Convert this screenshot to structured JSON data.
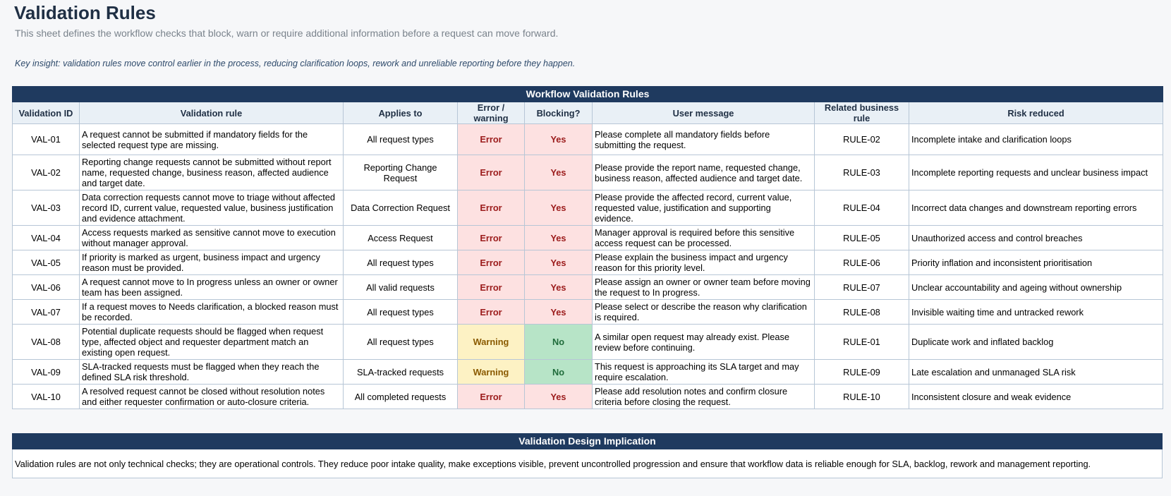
{
  "page": {
    "title": "Validation Rules",
    "subtitle": "This sheet defines the workflow checks that block, warn or require additional information before a request can move forward.",
    "insight": "Key insight: validation rules move control earlier in the process, reducing clarification loops, rework and unreliable reporting before they happen."
  },
  "rules_table": {
    "banner": "Workflow Validation Rules",
    "headers": {
      "id": "Validation ID",
      "rule": "Validation rule",
      "applies": "Applies to",
      "severity": "Error / warning",
      "blocking": "Blocking?",
      "message": "User message",
      "business_rule": "Related business rule",
      "risk": "Risk reduced"
    },
    "rows": [
      {
        "id": "VAL-01",
        "rule": "A request cannot be submitted if mandatory fields for the selected request type are missing.",
        "applies": "All request types",
        "severity": "Error",
        "blocking": "Yes",
        "message": "Please complete all mandatory fields before submitting the request.",
        "business_rule": "RULE-02",
        "risk": "Incomplete intake and clarification loops"
      },
      {
        "id": "VAL-02",
        "rule": "Reporting change requests cannot be submitted without report name, requested change, business reason, affected audience and target date.",
        "applies": "Reporting Change Request",
        "severity": "Error",
        "blocking": "Yes",
        "message": "Please provide the report name, requested change, business reason, affected audience and target date.",
        "business_rule": "RULE-03",
        "risk": "Incomplete reporting requests and unclear business impact"
      },
      {
        "id": "VAL-03",
        "rule": "Data correction requests cannot move to triage without affected record ID, current value, requested value, business justification and evidence attachment.",
        "applies": "Data Correction Request",
        "severity": "Error",
        "blocking": "Yes",
        "message": "Please provide the affected record, current value, requested value, justification and supporting evidence.",
        "business_rule": "RULE-04",
        "risk": "Incorrect data changes and downstream reporting errors"
      },
      {
        "id": "VAL-04",
        "rule": "Access requests marked as sensitive cannot move to execution without manager approval.",
        "applies": "Access Request",
        "severity": "Error",
        "blocking": "Yes",
        "message": "Manager approval is required before this sensitive access request can be processed.",
        "business_rule": "RULE-05",
        "risk": "Unauthorized access and control breaches"
      },
      {
        "id": "VAL-05",
        "rule": "If priority is marked as urgent, business impact and urgency reason must be provided.",
        "applies": "All request types",
        "severity": "Error",
        "blocking": "Yes",
        "message": "Please explain the business impact and urgency reason for this priority level.",
        "business_rule": "RULE-06",
        "risk": "Priority inflation and inconsistent prioritisation"
      },
      {
        "id": "VAL-06",
        "rule": "A request cannot move to In progress unless an owner or owner team has been assigned.",
        "applies": "All valid requests",
        "severity": "Error",
        "blocking": "Yes",
        "message": "Please assign an owner or owner team before moving the request to In progress.",
        "business_rule": "RULE-07",
        "risk": "Unclear accountability and ageing without ownership"
      },
      {
        "id": "VAL-07",
        "rule": "If a request moves to Needs clarification, a blocked reason must be recorded.",
        "applies": "All request types",
        "severity": "Error",
        "blocking": "Yes",
        "message": "Please select or describe the reason why clarification is required.",
        "business_rule": "RULE-08",
        "risk": "Invisible waiting time and untracked rework"
      },
      {
        "id": "VAL-08",
        "rule": "Potential duplicate requests should be flagged when request type, affected object and requester department match an existing open request.",
        "applies": "All request types",
        "severity": "Warning",
        "blocking": "No",
        "message": "A similar open request may already exist. Please review before continuing.",
        "business_rule": "RULE-01",
        "risk": "Duplicate work and inflated backlog"
      },
      {
        "id": "VAL-09",
        "rule": "SLA-tracked requests must be flagged when they reach the defined SLA risk threshold.",
        "applies": "SLA-tracked requests",
        "severity": "Warning",
        "blocking": "No",
        "message": "This request is approaching its SLA target and may require escalation.",
        "business_rule": "RULE-09",
        "risk": "Late escalation and unmanaged SLA risk"
      },
      {
        "id": "VAL-10",
        "rule": "A resolved request cannot be closed without resolution notes and either requester confirmation or auto-closure criteria.",
        "applies": "All completed requests",
        "severity": "Error",
        "blocking": "Yes",
        "message": "Please add resolution notes and confirm closure criteria before closing the request.",
        "business_rule": "RULE-10",
        "risk": "Inconsistent closure and weak evidence"
      }
    ]
  },
  "implication": {
    "banner": "Validation Design Implication",
    "text": "Validation rules are not only technical checks; they are operational controls. They reduce poor intake quality, make exceptions visible, prevent uncontrolled progression and ensure that workflow data is reliable enough for SLA, backlog, rework and management reporting."
  },
  "colors": {
    "banner": "#1f3a5f",
    "header_bg": "#e9f0f6",
    "error_bg": "#fde1e1",
    "error_text": "#9b1b1b",
    "warning_bg": "#fdf2c4",
    "warning_text": "#8a5a00",
    "no_bg": "#b7e4c7",
    "no_text": "#1f6b3a"
  }
}
